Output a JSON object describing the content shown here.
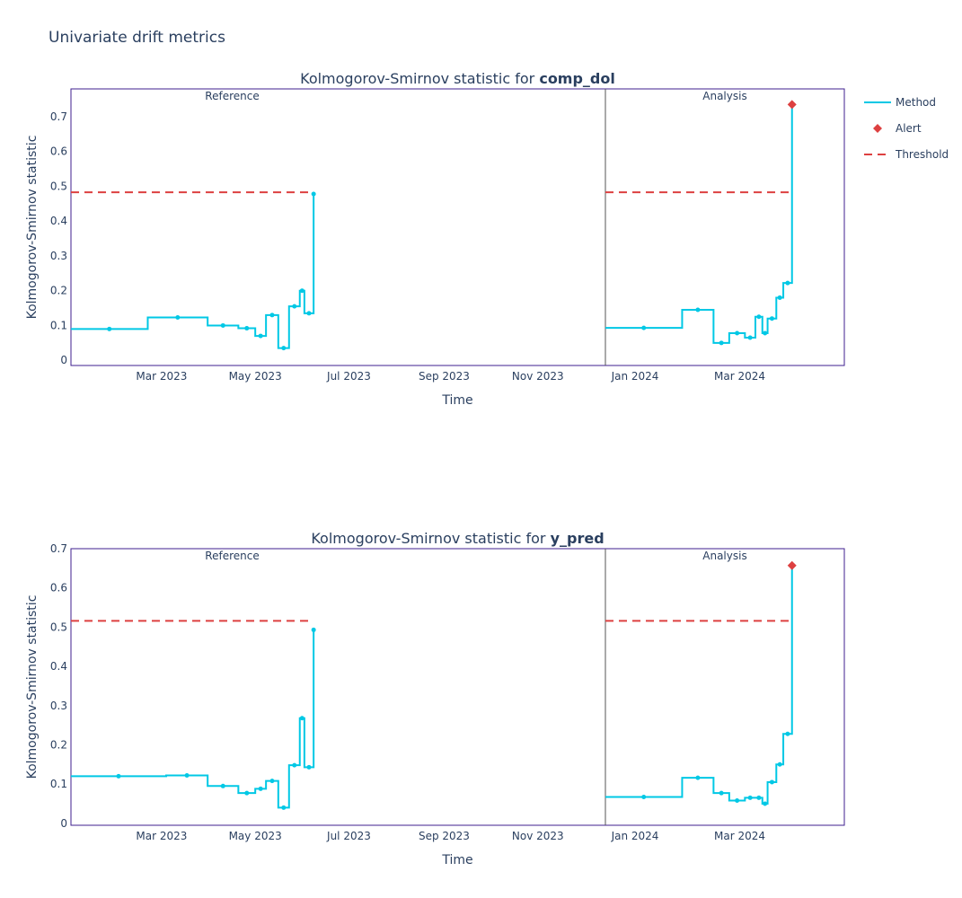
{
  "title": "Univariate drift metrics",
  "legend": {
    "items": [
      {
        "label": "Method",
        "kind": "line",
        "color": "#00c8e5"
      },
      {
        "label": "Alert",
        "kind": "diamond",
        "color": "#dd4040"
      },
      {
        "label": "Threshold",
        "kind": "dash",
        "color": "#dd4040"
      }
    ]
  },
  "colors": {
    "method": "#00c8e5",
    "alert": "#dd4040",
    "threshold": "#dd4040",
    "frame": "#3f1f8f",
    "text": "#2a3f5f"
  },
  "chart_data": [
    {
      "type": "line",
      "title_prefix": "Kolmogorov-Smirnov statistic for ",
      "title_bold": "comp_dol",
      "xlabel": "Time",
      "ylabel": "Kolmogorov-Smirnov statistic",
      "ylim": [
        -0.015,
        0.78
      ],
      "yticks": [
        0,
        0.1,
        0.2,
        0.3,
        0.4,
        0.5,
        0.6,
        0.7
      ],
      "ytick_labels": [
        "0",
        "0.1",
        "0.2",
        "0.3",
        "0.4",
        "0.5",
        "0.6",
        "0.7"
      ],
      "reference": {
        "label": "Reference",
        "xlim": [
          "2023-01-01",
          "2023-12-15"
        ],
        "xticks": [
          "2023-03-01",
          "2023-05-01",
          "2023-07-01",
          "2023-09-01",
          "2023-11-01"
        ],
        "xtick_labels": [
          "Mar 2023",
          "May 2023",
          "Jul 2023",
          "Sep 2023",
          "Nov 2023"
        ],
        "chunks": [
          {
            "start": "2023-01-01",
            "end": "2023-02-20",
            "value": 0.09
          },
          {
            "start": "2023-02-20",
            "end": "2023-03-31",
            "value": 0.123
          },
          {
            "start": "2023-03-31",
            "end": "2023-04-20",
            "value": 0.1
          },
          {
            "start": "2023-04-20",
            "end": "2023-05-01",
            "value": 0.092
          },
          {
            "start": "2023-05-01",
            "end": "2023-05-08",
            "value": 0.07
          },
          {
            "start": "2023-05-08",
            "end": "2023-05-16",
            "value": 0.13
          },
          {
            "start": "2023-05-16",
            "end": "2023-05-23",
            "value": 0.035
          },
          {
            "start": "2023-05-23",
            "end": "2023-05-30",
            "value": 0.155
          },
          {
            "start": "2023-05-30",
            "end": "2023-06-02",
            "value": 0.2
          },
          {
            "start": "2023-06-02",
            "end": "2023-06-08",
            "value": 0.135
          },
          {
            "start": "2023-06-08",
            "end": "2023-06-08",
            "value": 0.478
          }
        ],
        "threshold": 0.483,
        "threshold_range": [
          "2023-01-01",
          "2023-06-05"
        ]
      },
      "analysis": {
        "label": "Analysis",
        "xlim": [
          "2023-12-15",
          "2024-04-30"
        ],
        "xticks": [
          "2024-01-01",
          "2024-03-01"
        ],
        "xtick_labels": [
          "Jan 2024",
          "Mar 2024"
        ],
        "chunks": [
          {
            "start": "2023-12-15",
            "end": "2024-01-28",
            "value": 0.093
          },
          {
            "start": "2024-01-28",
            "end": "2024-02-15",
            "value": 0.145
          },
          {
            "start": "2024-02-15",
            "end": "2024-02-24",
            "value": 0.05
          },
          {
            "start": "2024-02-24",
            "end": "2024-03-04",
            "value": 0.078
          },
          {
            "start": "2024-03-04",
            "end": "2024-03-10",
            "value": 0.065
          },
          {
            "start": "2024-03-10",
            "end": "2024-03-14",
            "value": 0.125
          },
          {
            "start": "2024-03-14",
            "end": "2024-03-17",
            "value": 0.078
          },
          {
            "start": "2024-03-17",
            "end": "2024-03-22",
            "value": 0.12
          },
          {
            "start": "2024-03-22",
            "end": "2024-03-26",
            "value": 0.18
          },
          {
            "start": "2024-03-26",
            "end": "2024-03-31",
            "value": 0.222
          },
          {
            "start": "2024-03-31",
            "end": "2024-03-31",
            "value": 0.735,
            "alert": true
          }
        ],
        "threshold": 0.483,
        "threshold_range": [
          "2023-12-15",
          "2024-03-31"
        ]
      }
    },
    {
      "type": "line",
      "title_prefix": "Kolmogorov-Smirnov statistic for ",
      "title_bold": "y_pred",
      "xlabel": "Time",
      "ylabel": "Kolmogorov-Smirnov statistic",
      "ylim": [
        -0.005,
        0.7
      ],
      "yticks": [
        0,
        0.1,
        0.2,
        0.3,
        0.4,
        0.5,
        0.6,
        0.7
      ],
      "ytick_labels": [
        "0",
        "0.1",
        "0.2",
        "0.3",
        "0.4",
        "0.5",
        "0.6",
        "0.7"
      ],
      "reference": {
        "label": "Reference",
        "xlim": [
          "2023-01-01",
          "2023-12-15"
        ],
        "xticks": [
          "2023-03-01",
          "2023-05-01",
          "2023-07-01",
          "2023-09-01",
          "2023-11-01"
        ],
        "xtick_labels": [
          "Mar 2023",
          "May 2023",
          "Jul 2023",
          "Sep 2023",
          "Nov 2023"
        ],
        "chunks": [
          {
            "start": "2023-01-01",
            "end": "2023-03-04",
            "value": 0.12
          },
          {
            "start": "2023-03-04",
            "end": "2023-03-31",
            "value": 0.122
          },
          {
            "start": "2023-03-31",
            "end": "2023-04-20",
            "value": 0.095
          },
          {
            "start": "2023-04-20",
            "end": "2023-05-01",
            "value": 0.077
          },
          {
            "start": "2023-05-01",
            "end": "2023-05-08",
            "value": 0.088
          },
          {
            "start": "2023-05-08",
            "end": "2023-05-16",
            "value": 0.108
          },
          {
            "start": "2023-05-16",
            "end": "2023-05-23",
            "value": 0.04
          },
          {
            "start": "2023-05-23",
            "end": "2023-05-30",
            "value": 0.148
          },
          {
            "start": "2023-05-30",
            "end": "2023-06-02",
            "value": 0.268
          },
          {
            "start": "2023-06-02",
            "end": "2023-06-08",
            "value": 0.143
          },
          {
            "start": "2023-06-08",
            "end": "2023-06-08",
            "value": 0.493
          }
        ],
        "threshold": 0.516,
        "threshold_range": [
          "2023-01-01",
          "2023-06-05"
        ]
      },
      "analysis": {
        "label": "Analysis",
        "xlim": [
          "2023-12-15",
          "2024-04-30"
        ],
        "xticks": [
          "2024-01-01",
          "2024-03-01"
        ],
        "xtick_labels": [
          "Jan 2024",
          "Mar 2024"
        ],
        "chunks": [
          {
            "start": "2023-12-15",
            "end": "2024-01-28",
            "value": 0.067
          },
          {
            "start": "2024-01-28",
            "end": "2024-02-15",
            "value": 0.116
          },
          {
            "start": "2024-02-15",
            "end": "2024-02-24",
            "value": 0.077
          },
          {
            "start": "2024-02-24",
            "end": "2024-03-04",
            "value": 0.058
          },
          {
            "start": "2024-03-04",
            "end": "2024-03-10",
            "value": 0.065
          },
          {
            "start": "2024-03-10",
            "end": "2024-03-14",
            "value": 0.065
          },
          {
            "start": "2024-03-14",
            "end": "2024-03-17",
            "value": 0.05
          },
          {
            "start": "2024-03-17",
            "end": "2024-03-22",
            "value": 0.105
          },
          {
            "start": "2024-03-22",
            "end": "2024-03-26",
            "value": 0.15
          },
          {
            "start": "2024-03-26",
            "end": "2024-03-31",
            "value": 0.228
          },
          {
            "start": "2024-03-31",
            "end": "2024-03-31",
            "value": 0.657,
            "alert": true
          }
        ],
        "threshold": 0.516,
        "threshold_range": [
          "2023-12-15",
          "2024-03-31"
        ]
      }
    }
  ]
}
